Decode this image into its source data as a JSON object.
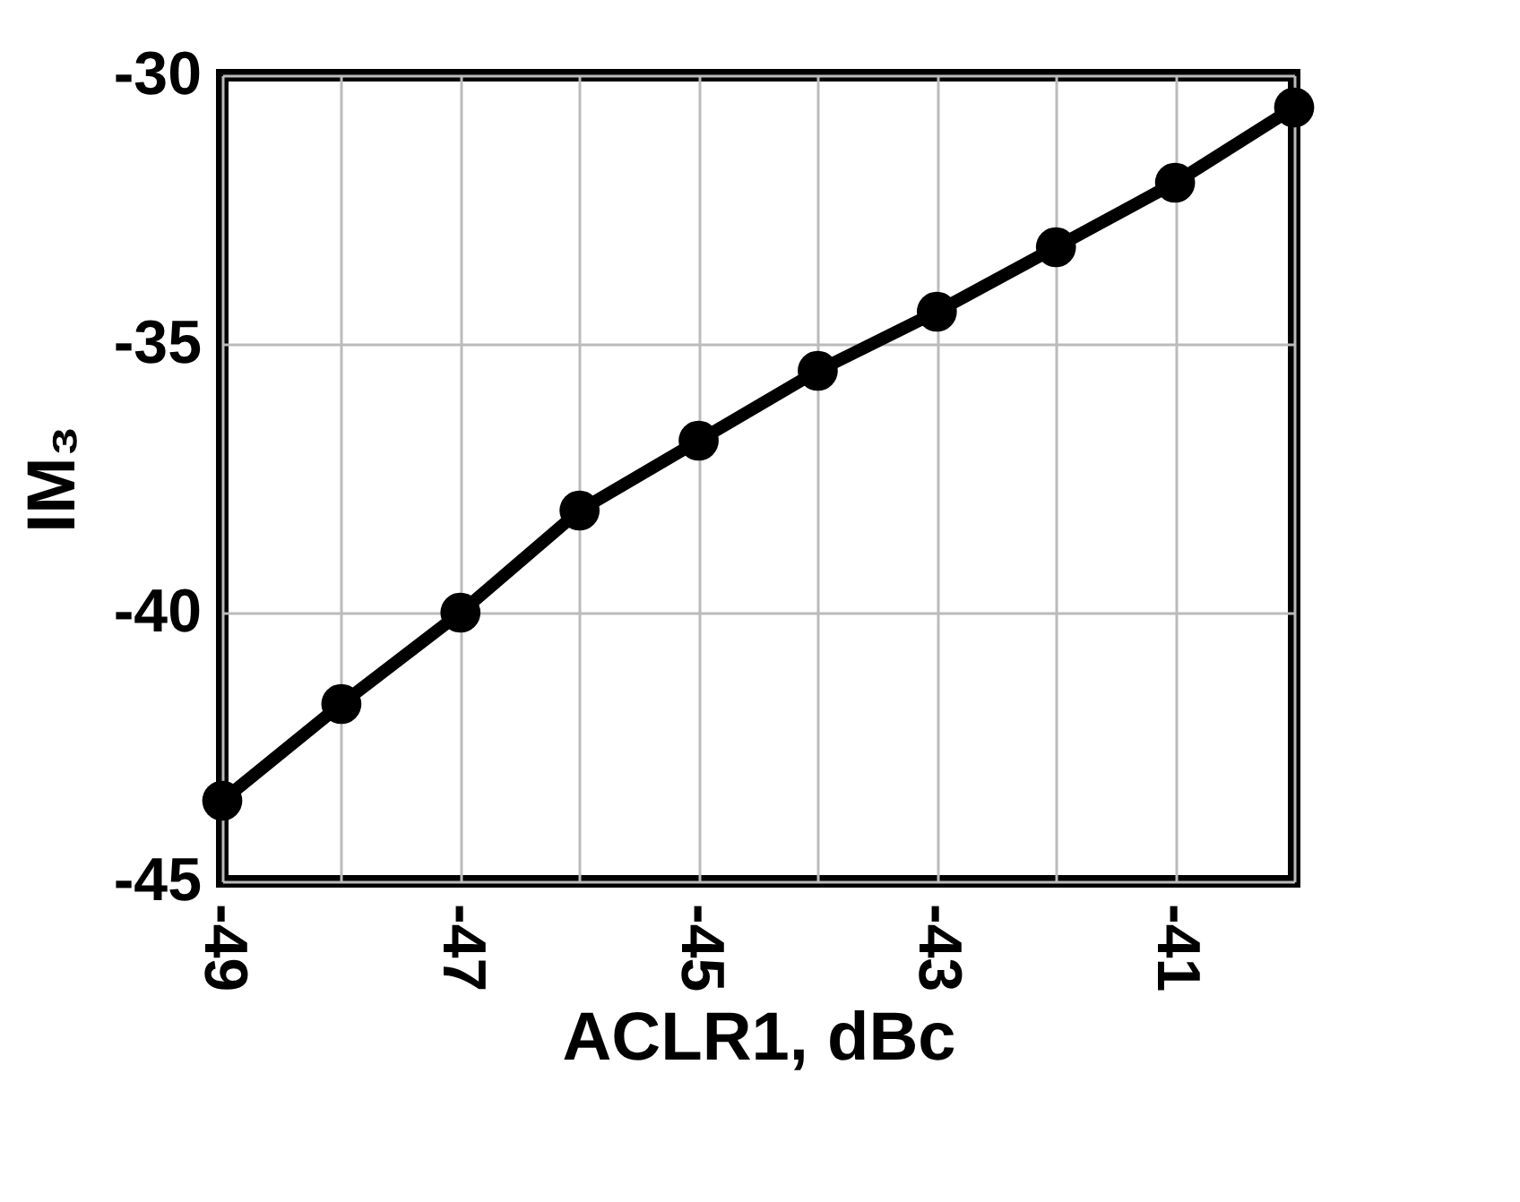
{
  "chart_data": {
    "type": "line",
    "xlabel": "ACLR1, dBc",
    "ylabel": "IM₃",
    "x": [
      -49,
      -48,
      -47,
      -46,
      -45,
      -44,
      -43,
      -42,
      -41,
      -40
    ],
    "series": [
      {
        "color": "#000000",
        "values": [
          -43.5,
          -41.7,
          -40.0,
          -38.1,
          -36.8,
          -35.5,
          -34.4,
          -33.2,
          -32.0,
          -30.6
        ]
      }
    ],
    "xlim": [
      -49,
      -40
    ],
    "xticks": [
      -49,
      {
        "value": -48,
        "label": null
      },
      -47,
      {
        "value": -46,
        "label": null
      },
      -45,
      {
        "value": -44,
        "label": null
      },
      -43,
      {
        "value": -42,
        "label": null
      },
      -41,
      {
        "value": -40,
        "label": null
      }
    ],
    "ylim": [
      -45,
      -30
    ],
    "yticks": [
      -45,
      -40,
      -35,
      -30
    ],
    "grid": true,
    "marker": "circle",
    "line_style": "solid"
  }
}
